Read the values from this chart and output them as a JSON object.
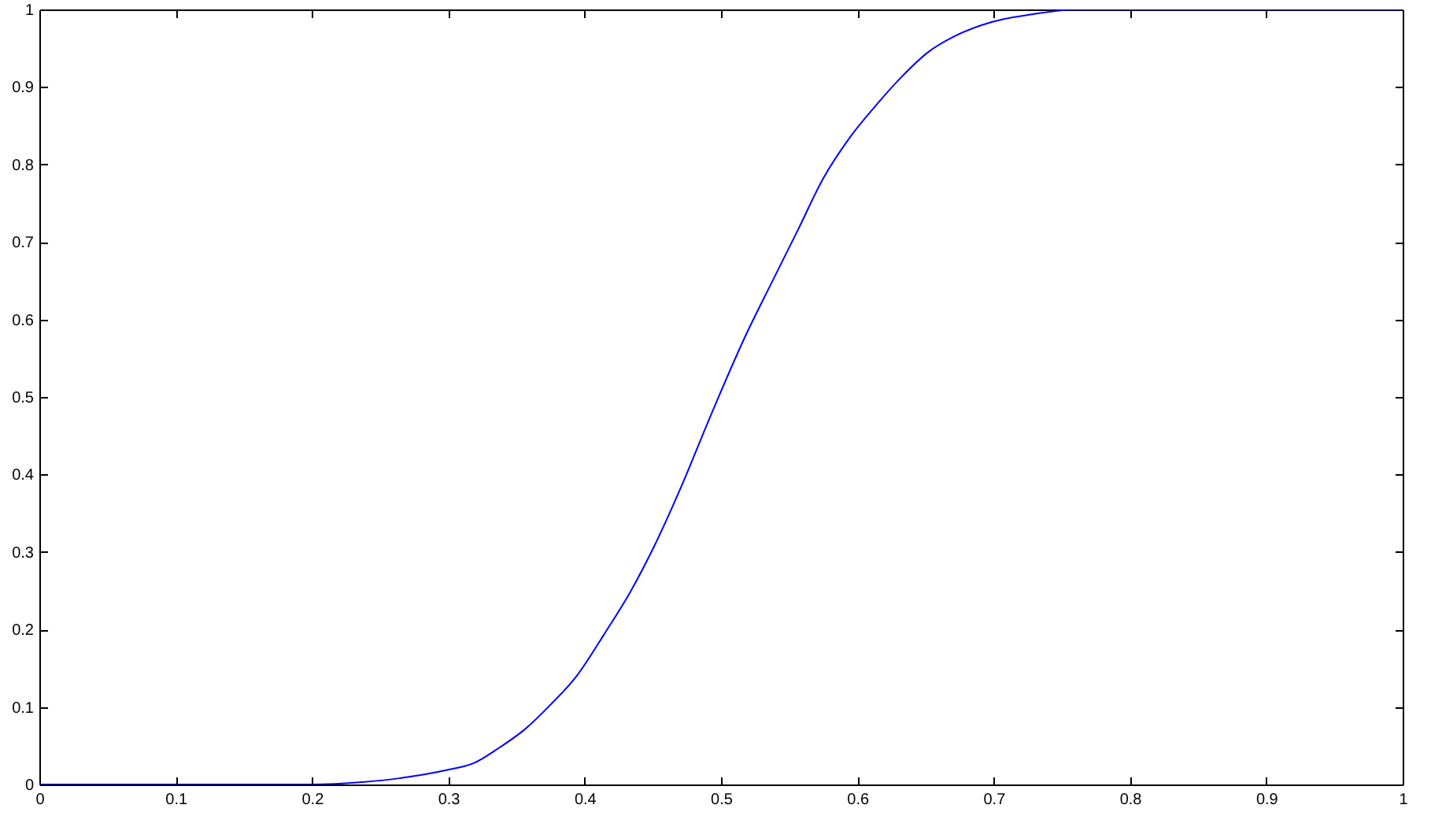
{
  "chart_data": {
    "type": "line",
    "x": [
      0,
      0.1,
      0.2,
      0.237,
      0.264,
      0.3,
      0.318,
      0.337,
      0.356,
      0.375,
      0.395,
      0.414,
      0.433,
      0.452,
      0.472,
      0.491,
      0.518,
      0.537,
      0.556,
      0.575,
      0.595,
      0.614,
      0.633,
      0.652,
      0.672,
      0.699,
      0.729,
      0.762,
      0.8,
      0.9,
      1
    ],
    "series": [
      {
        "color": "#0000ff",
        "values": [
          0,
          0,
          0,
          0.003,
          0.008,
          0.019,
          0.027,
          0.047,
          0.071,
          0.103,
          0.142,
          0.193,
          0.247,
          0.311,
          0.389,
          0.47,
          0.579,
          0.647,
          0.714,
          0.782,
          0.836,
          0.877,
          0.914,
          0.945,
          0.966,
          0.984,
          0.994,
          1,
          1,
          1,
          1
        ]
      }
    ],
    "xlim": [
      0,
      1
    ],
    "ylim": [
      0,
      1
    ],
    "xticks": [
      0,
      0.1,
      0.2,
      0.3,
      0.4,
      0.5,
      0.6,
      0.7,
      0.8,
      0.9,
      1
    ],
    "yticks": [
      0,
      0.1,
      0.2,
      0.3,
      0.4,
      0.5,
      0.6,
      0.7,
      0.8,
      0.9,
      1
    ],
    "grid": false,
    "marker": "none",
    "line_style": "solid"
  }
}
